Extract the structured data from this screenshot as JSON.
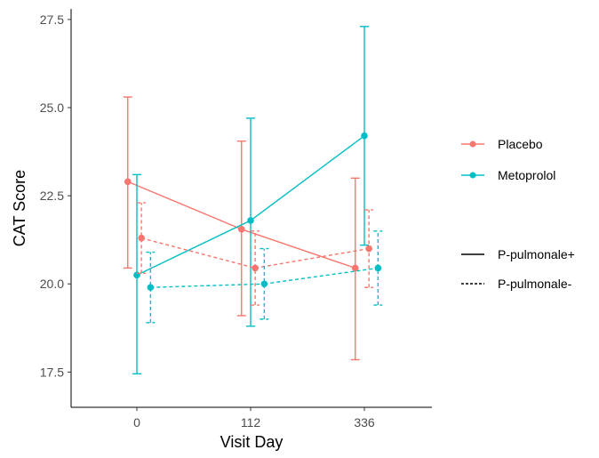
{
  "chart_data": {
    "type": "line",
    "title": "",
    "xlabel": "Visit Day",
    "ylabel": "CAT Score",
    "categories": [
      "0",
      "112",
      "336"
    ],
    "y_ticks": [
      "17.5",
      "20.0",
      "22.5",
      "25.0",
      "27.5"
    ],
    "ylim": [
      16.5,
      27.8
    ],
    "grid": false,
    "legend_placement": "right",
    "colors": {
      "Placebo": "#f8766d",
      "Metoprolol": "#00bfc4"
    },
    "legend": {
      "treatment": [
        {
          "label": "Placebo",
          "color": "#f8766d"
        },
        {
          "label": "Metoprolol",
          "color": "#00bfc4"
        }
      ],
      "linetype": [
        {
          "label": "P-pulmonale+",
          "style": "solid"
        },
        {
          "label": "P-pulmonale-",
          "style": "dashed"
        }
      ]
    },
    "series": [
      {
        "treatment": "Placebo",
        "linetype": "solid",
        "offset": -0.08,
        "values": [
          22.9,
          21.55,
          20.45
        ],
        "lower": [
          20.45,
          19.1,
          17.85
        ],
        "upper": [
          25.3,
          24.05,
          23.0
        ]
      },
      {
        "treatment": "Metoprolol",
        "linetype": "solid",
        "offset": 0.0,
        "values": [
          20.25,
          21.8,
          24.2
        ],
        "lower": [
          17.45,
          18.8,
          21.1
        ],
        "upper": [
          23.1,
          24.7,
          27.3
        ]
      },
      {
        "treatment": "Placebo",
        "linetype": "dashed",
        "offset": 0.04,
        "values": [
          21.3,
          20.45,
          21.0
        ],
        "lower": [
          20.3,
          19.4,
          19.9
        ],
        "upper": [
          22.3,
          21.5,
          22.1
        ]
      },
      {
        "treatment": "Metoprolol",
        "linetype": "dashed",
        "offset": 0.12,
        "values": [
          19.9,
          20.0,
          20.45
        ],
        "lower": [
          18.9,
          19.0,
          19.4
        ],
        "upper": [
          20.9,
          21.0,
          21.5
        ]
      }
    ]
  }
}
